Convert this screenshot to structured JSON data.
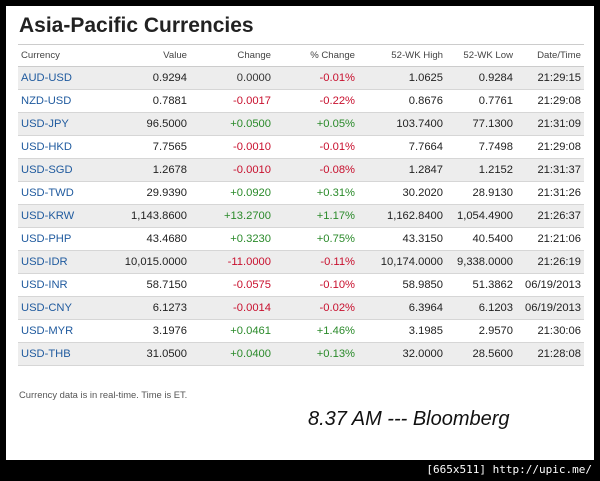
{
  "title": "Asia-Pacific Currencies",
  "columns": [
    "Currency",
    "Value",
    "Change",
    "% Change",
    "52-WK High",
    "52-WK Low",
    "Date/Time"
  ],
  "rows": [
    [
      "AUD-USD",
      "0.9294",
      "0.0000",
      "-0.01%",
      "1.0625",
      "0.9284",
      "21:29:15"
    ],
    [
      "NZD-USD",
      "0.7881",
      "-0.0017",
      "-0.22%",
      "0.8676",
      "0.7761",
      "21:29:08"
    ],
    [
      "USD-JPY",
      "96.5000",
      "+0.0500",
      "+0.05%",
      "103.7400",
      "77.1300",
      "21:31:09"
    ],
    [
      "USD-HKD",
      "7.7565",
      "-0.0010",
      "-0.01%",
      "7.7664",
      "7.7498",
      "21:29:08"
    ],
    [
      "USD-SGD",
      "1.2678",
      "-0.0010",
      "-0.08%",
      "1.2847",
      "1.2152",
      "21:31:37"
    ],
    [
      "USD-TWD",
      "29.9390",
      "+0.0920",
      "+0.31%",
      "30.2020",
      "28.9130",
      "21:31:26"
    ],
    [
      "USD-KRW",
      "1,143.8600",
      "+13.2700",
      "+1.17%",
      "1,162.8400",
      "1,054.4900",
      "21:26:37"
    ],
    [
      "USD-PHP",
      "43.4680",
      "+0.3230",
      "+0.75%",
      "43.3150",
      "40.5400",
      "21:21:06"
    ],
    [
      "USD-IDR",
      "10,015.0000",
      "-11.0000",
      "-0.11%",
      "10,174.0000",
      "9,338.0000",
      "21:26:19"
    ],
    [
      "USD-INR",
      "58.7150",
      "-0.0575",
      "-0.10%",
      "58.9850",
      "51.3862",
      "06/19/2013"
    ],
    [
      "USD-CNY",
      "6.1273",
      "-0.0014",
      "-0.02%",
      "6.3964",
      "6.1203",
      "06/19/2013"
    ],
    [
      "USD-MYR",
      "3.1976",
      "+0.0461",
      "+1.46%",
      "3.1985",
      "2.9570",
      "21:30:06"
    ],
    [
      "USD-THB",
      "31.0500",
      "+0.0400",
      "+0.13%",
      "32.0000",
      "28.5600",
      "21:28:08"
    ]
  ],
  "footnote": "Currency data is in real-time. Time is ET.",
  "credit": "8.37 AM --- Bloomberg",
  "watermark": "[665x511] http://upic.me/",
  "colors": {
    "link": "#1f5a9e",
    "negative": "#c8102e",
    "positive": "#2a8a2a"
  }
}
